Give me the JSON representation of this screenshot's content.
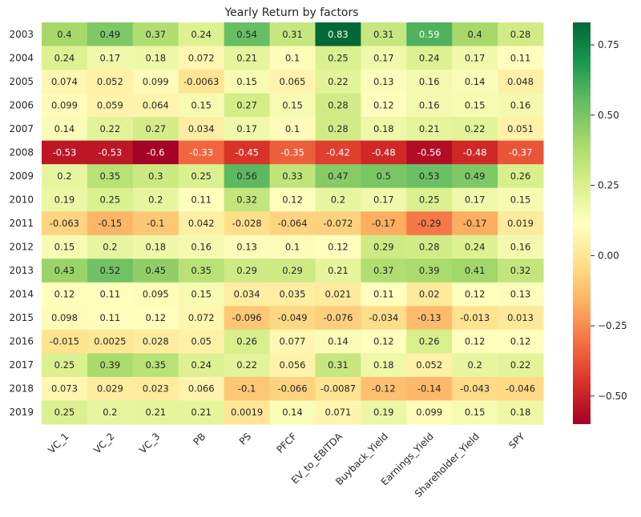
{
  "chart_data": {
    "type": "heatmap",
    "title": "Yearly Return by factors",
    "xlabel": "",
    "ylabel": "",
    "columns": [
      "VC_1",
      "VC_2",
      "VC_3",
      "PB",
      "PS",
      "PFCF",
      "EV_to_EBITDA",
      "Buyback_Yield",
      "Earnings_Yield",
      "Shareholder_Yield",
      "SPY"
    ],
    "rows": [
      "2003",
      "2004",
      "2005",
      "2006",
      "2007",
      "2008",
      "2009",
      "2010",
      "2011",
      "2012",
      "2013",
      "2014",
      "2015",
      "2016",
      "2017",
      "2018",
      "2019"
    ],
    "values": [
      [
        "0.4",
        "0.49",
        "0.37",
        "0.24",
        "0.54",
        "0.31",
        "0.83",
        "0.31",
        "0.59",
        "0.4",
        "0.28"
      ],
      [
        "0.24",
        "0.17",
        "0.18",
        "0.072",
        "0.21",
        "0.1",
        "0.25",
        "0.17",
        "0.24",
        "0.17",
        "0.11"
      ],
      [
        "0.074",
        "0.052",
        "0.099",
        "-0.0063",
        "0.15",
        "0.065",
        "0.22",
        "0.13",
        "0.16",
        "0.14",
        "0.048"
      ],
      [
        "0.099",
        "0.059",
        "0.064",
        "0.15",
        "0.27",
        "0.15",
        "0.28",
        "0.12",
        "0.16",
        "0.15",
        "0.16"
      ],
      [
        "0.14",
        "0.22",
        "0.27",
        "0.034",
        "0.17",
        "0.1",
        "0.28",
        "0.18",
        "0.21",
        "0.22",
        "0.051"
      ],
      [
        "-0.53",
        "-0.53",
        "-0.6",
        "-0.33",
        "-0.45",
        "-0.35",
        "-0.42",
        "-0.48",
        "-0.56",
        "-0.48",
        "-0.37"
      ],
      [
        "0.2",
        "0.35",
        "0.3",
        "0.25",
        "0.56",
        "0.33",
        "0.47",
        "0.5",
        "0.53",
        "0.49",
        "0.26"
      ],
      [
        "0.19",
        "0.25",
        "0.2",
        "0.11",
        "0.32",
        "0.12",
        "0.2",
        "0.17",
        "0.25",
        "0.17",
        "0.15"
      ],
      [
        "-0.063",
        "-0.15",
        "-0.1",
        "0.042",
        "-0.028",
        "-0.064",
        "-0.072",
        "-0.17",
        "-0.29",
        "-0.17",
        "0.019"
      ],
      [
        "0.15",
        "0.2",
        "0.18",
        "0.16",
        "0.13",
        "0.1",
        "0.12",
        "0.29",
        "0.28",
        "0.24",
        "0.16"
      ],
      [
        "0.43",
        "0.52",
        "0.45",
        "0.35",
        "0.29",
        "0.29",
        "0.21",
        "0.37",
        "0.39",
        "0.41",
        "0.32"
      ],
      [
        "0.12",
        "0.11",
        "0.095",
        "0.15",
        "0.034",
        "0.035",
        "0.021",
        "0.11",
        "0.02",
        "0.12",
        "0.13"
      ],
      [
        "0.098",
        "0.11",
        "0.12",
        "0.072",
        "-0.096",
        "-0.049",
        "-0.076",
        "-0.034",
        "-0.13",
        "-0.013",
        "0.013"
      ],
      [
        "-0.015",
        "0.0025",
        "0.028",
        "0.05",
        "0.26",
        "0.077",
        "0.14",
        "0.12",
        "0.26",
        "0.12",
        "0.12"
      ],
      [
        "0.25",
        "0.39",
        "0.35",
        "0.24",
        "0.22",
        "0.056",
        "0.31",
        "0.18",
        "0.052",
        "0.2",
        "0.22"
      ],
      [
        "0.073",
        "0.029",
        "0.023",
        "0.066",
        "-0.1",
        "-0.066",
        "-0.0087",
        "-0.12",
        "-0.14",
        "-0.043",
        "-0.046"
      ],
      [
        "0.25",
        "0.2",
        "0.21",
        "0.21",
        "0.0019",
        "0.14",
        "0.071",
        "0.19",
        "0.099",
        "0.15",
        "0.18"
      ]
    ],
    "colormap": "RdYlGn",
    "color_range": [
      -0.6,
      0.83
    ],
    "colorbar_ticks": [
      "0.75",
      "0.50",
      "0.25",
      "0.00",
      "−0.25",
      "−0.50"
    ],
    "colorbar_tick_values": [
      0.75,
      0.5,
      0.25,
      0.0,
      -0.25,
      -0.5
    ]
  }
}
